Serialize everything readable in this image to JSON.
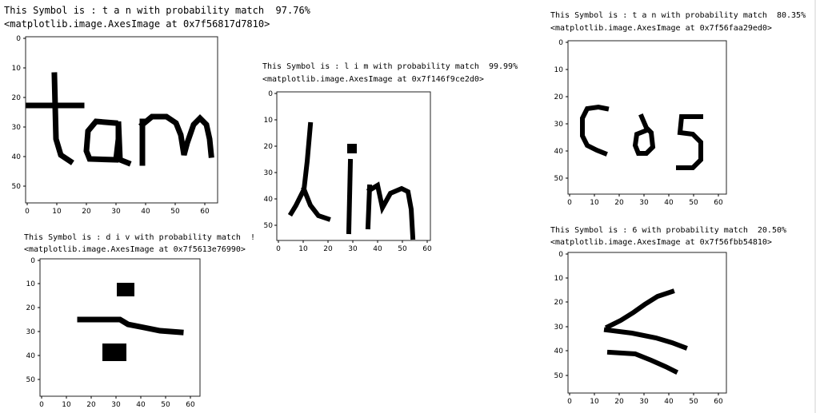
{
  "outputs": [
    {
      "id": "tan",
      "text": "This Symbol is : t a n with probability match  97.76%",
      "repr": "<matplotlib.image.AxesImage at 0x7f56817d7810>",
      "xticks": [
        "0",
        "10",
        "20",
        "30",
        "40",
        "50",
        "60"
      ],
      "yticks": [
        "0",
        "10",
        "20",
        "30",
        "40",
        "50"
      ],
      "image_label": "tan"
    },
    {
      "id": "lim",
      "text": "This Symbol is : l i m with probability match  99.99%",
      "repr": "<matplotlib.image.AxesImage at 0x7f146f9ce2d0>",
      "xticks": [
        "0",
        "10",
        "20",
        "30",
        "40",
        "50",
        "60"
      ],
      "yticks": [
        "0",
        "10",
        "20",
        "30",
        "40",
        "50"
      ],
      "image_label": "lim"
    },
    {
      "id": "cos",
      "text": "This Symbol is : t a n with probability match  80.35%",
      "repr": "<matplotlib.image.AxesImage at 0x7f56faa29ed0>",
      "xticks": [
        "0",
        "10",
        "20",
        "30",
        "40",
        "50",
        "60"
      ],
      "yticks": [
        "0",
        "10",
        "20",
        "30",
        "40",
        "50"
      ],
      "image_label": "cos"
    },
    {
      "id": "div",
      "text": "This Symbol is : d i v with probability match  !",
      "repr": "<matplotlib.image.AxesImage at 0x7f5613e76990>",
      "xticks": [
        "0",
        "10",
        "20",
        "30",
        "40",
        "50",
        "60"
      ],
      "yticks": [
        "0",
        "10",
        "20",
        "30",
        "40",
        "50"
      ],
      "image_label": "div"
    },
    {
      "id": "lt",
      "text": "This Symbol is : 6 with probability match  20.50%",
      "repr": "<matplotlib.image.AxesImage at 0x7f56fbb54810>",
      "xticks": [
        "0",
        "10",
        "20",
        "30",
        "40",
        "50",
        "60"
      ],
      "yticks": [
        "0",
        "10",
        "20",
        "30",
        "40",
        "50"
      ],
      "image_label": "<"
    }
  ]
}
